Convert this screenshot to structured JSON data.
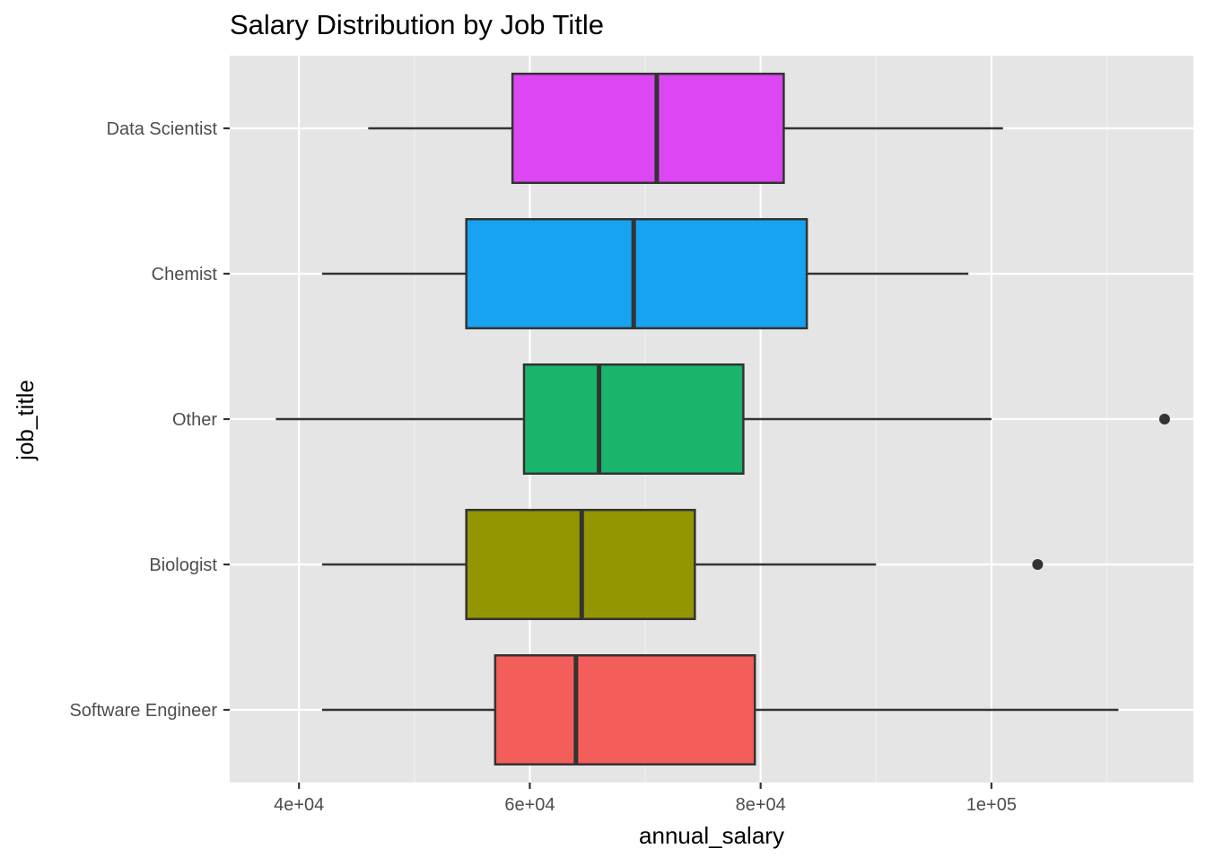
{
  "chart_data": {
    "type": "boxplot",
    "orientation": "horizontal",
    "title": "Salary Distribution by Job Title",
    "xlabel": "annual_salary",
    "ylabel": "job_title",
    "xlim": [
      34000,
      117500
    ],
    "x_ticks": [
      40000,
      60000,
      80000,
      100000
    ],
    "x_tick_labels": [
      "4e+04",
      "6e+04",
      "8e+04",
      "1e+05"
    ],
    "grid": true,
    "legend": "none",
    "categories": [
      "Data Scientist",
      "Chemist",
      "Other",
      "Biologist",
      "Software Engineer"
    ],
    "series": [
      {
        "category": "Data Scientist",
        "whisker_low": 46000,
        "q1": 58500,
        "median": 71000,
        "q3": 82000,
        "whisker_high": 101000,
        "outliers": [],
        "color": "#DC47F3"
      },
      {
        "category": "Chemist",
        "whisker_low": 42000,
        "q1": 54500,
        "median": 69000,
        "q3": 84000,
        "whisker_high": 98000,
        "outliers": [],
        "color": "#17A2F2"
      },
      {
        "category": "Other",
        "whisker_low": 38000,
        "q1": 59500,
        "median": 66000,
        "q3": 78500,
        "whisker_high": 100000,
        "outliers": [
          115000
        ],
        "color": "#19B56B"
      },
      {
        "category": "Biologist",
        "whisker_low": 42000,
        "q1": 54500,
        "median": 64500,
        "q3": 74300,
        "whisker_high": 90000,
        "outliers": [
          104000
        ],
        "color": "#939600"
      },
      {
        "category": "Software Engineer",
        "whisker_low": 42000,
        "q1": 57000,
        "median": 64000,
        "q3": 79500,
        "whisker_high": 111000,
        "outliers": [],
        "color": "#F35E5A"
      }
    ],
    "colors": {
      "panel_background": "#E5E5E5",
      "grid_major": "#FFFFFF",
      "grid_minor": "#F2F2F2",
      "outline": "#333333",
      "tick_text": "#4D4D4D"
    }
  }
}
